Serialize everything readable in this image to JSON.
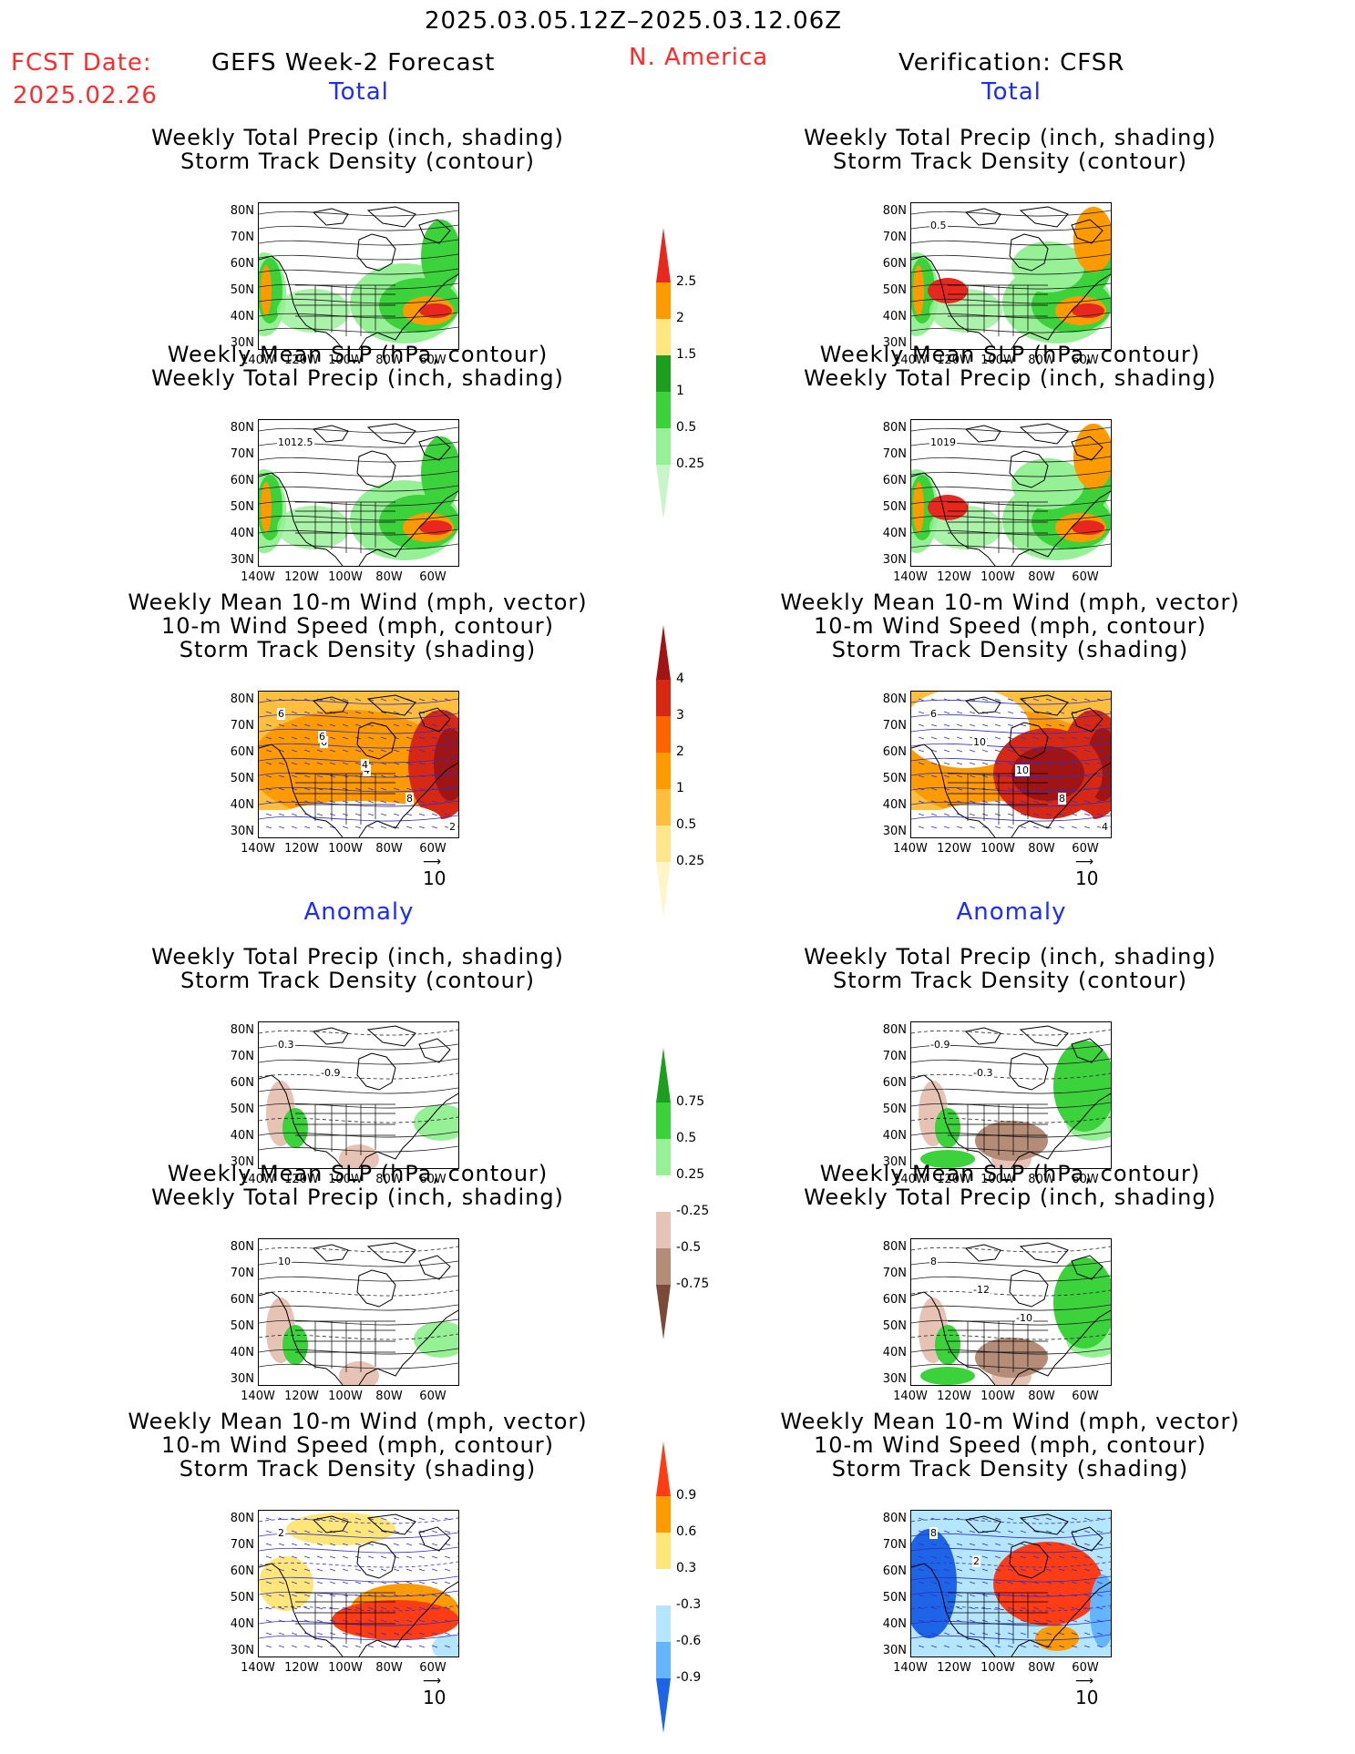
{
  "header": {
    "period": "2025.03.05.12Z–2025.03.12.06Z",
    "fcst_label": "FCST Date:",
    "fcst_date": "2025.02.26",
    "model": "GEFS Week-2 Forecast",
    "region": "N. America",
    "verification": "Verification: CFSR"
  },
  "sections": {
    "total": "Total",
    "anomaly": "Anomaly"
  },
  "titles": {
    "precip_track": [
      "Weekly Total Precip (inch, shading)",
      "Storm Track Density (contour)"
    ],
    "slp_precip": [
      "Weekly Mean SLP (hPa, contour)",
      "Weekly Total Precip (inch, shading)"
    ],
    "wind_track": [
      "Weekly Mean 10-m Wind (mph, vector)",
      "10-m Wind Speed (mph, contour)",
      "Storm Track Density (shading)"
    ]
  },
  "axes": {
    "lat": [
      "80N",
      "70N",
      "60N",
      "50N",
      "40N",
      "30N"
    ],
    "lon": [
      "140W",
      "120W",
      "100W",
      "80W",
      "60W"
    ]
  },
  "vector_scale": "10",
  "map_labels": {
    "f_total_precip": [],
    "v_total_precip": [
      "0.5"
    ],
    "f_total_slp": [
      "1012.5"
    ],
    "v_total_slp": [
      "1019"
    ],
    "f_total_wind": [
      "6",
      "6",
      "4",
      "8",
      "2",
      "6",
      "4"
    ],
    "v_total_wind": [
      "6",
      "10",
      "10",
      "8",
      "4"
    ],
    "f_anom_precip": [
      "0.3",
      "-0.9"
    ],
    "v_anom_precip": [
      "-0.9",
      "-0.3"
    ],
    "f_anom_slp": [
      "10"
    ],
    "v_anom_slp": [
      "8",
      "-12",
      "-10"
    ],
    "f_anom_wind": [
      "2"
    ],
    "v_anom_wind": [
      "8",
      "2"
    ]
  },
  "colorbars": {
    "precip_total": {
      "labels": [
        "2.5",
        "2",
        "1.5",
        "1",
        "0.5",
        "0.25"
      ],
      "colors": [
        "#e8281e",
        "#ff9a00",
        "#ffe680",
        "#1e9e1e",
        "#3cd23c",
        "#96f096",
        "#c8f5c8"
      ]
    },
    "track_total": {
      "labels": [
        "4",
        "3",
        "2",
        "1",
        "0.5",
        "0.25"
      ],
      "colors": [
        "#a01414",
        "#d72814",
        "#ff6400",
        "#ff9b00",
        "#ffbe3c",
        "#ffe68c",
        "#fff5c8"
      ]
    },
    "precip_anom": {
      "labels": [
        "0.75",
        "0.5",
        "0.25",
        "-0.25",
        "-0.5",
        "-0.75"
      ],
      "colors": [
        "#1e9e1e",
        "#3cd23c",
        "#96f096",
        "#ffffff",
        "#e6c3b4",
        "#b48c78",
        "#7a4a38"
      ]
    },
    "track_anom": {
      "labels": [
        "0.9",
        "0.6",
        "0.3",
        "-0.3",
        "-0.6",
        "-0.9"
      ],
      "colors": [
        "#ff3c14",
        "#ff9b00",
        "#ffe678",
        "#ffffff",
        "#b4e6ff",
        "#64b4ff",
        "#1e64e6"
      ]
    }
  },
  "colors": {
    "green_light": "#96f096",
    "green": "#3cd23c",
    "green_dark": "#1e9e1e",
    "orange": "#ff9a00",
    "red": "#e8281e",
    "yellow": "#ffe680",
    "brown_light": "#e6c3b4",
    "brown": "#b48c78",
    "blue_light": "#b4e6ff",
    "blue": "#64b4ff",
    "blue_dark": "#1e64e6",
    "contour_blue": "#3030c0"
  }
}
